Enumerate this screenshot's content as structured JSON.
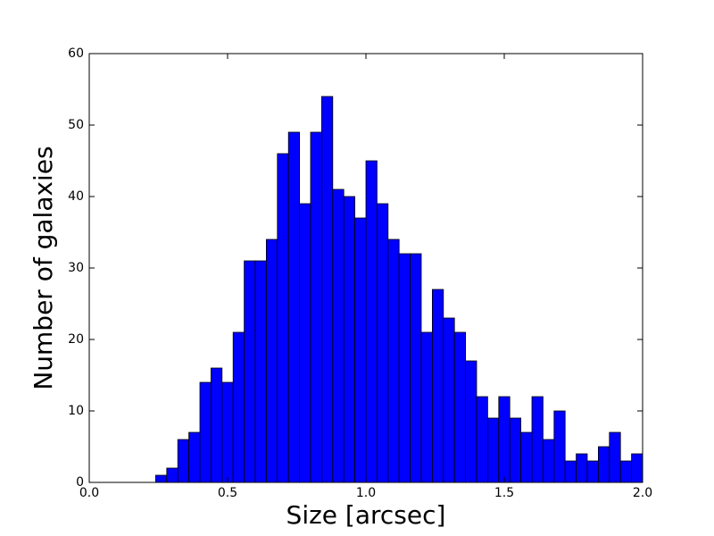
{
  "chart_data": {
    "type": "histogram",
    "xlabel": "Size [arcsec]",
    "ylabel": "Number of galaxies",
    "bins": [
      0.24,
      0.28,
      0.32,
      0.36,
      0.4,
      0.44,
      0.48,
      0.52,
      0.56,
      0.6,
      0.64,
      0.68,
      0.72,
      0.76,
      0.8,
      0.84,
      0.88,
      0.92,
      0.96,
      1.0,
      1.04,
      1.08,
      1.12,
      1.16,
      1.2,
      1.24,
      1.28,
      1.32,
      1.36,
      1.4,
      1.44,
      1.48,
      1.52,
      1.56,
      1.6,
      1.64,
      1.68,
      1.72,
      1.76,
      1.8,
      1.84,
      1.88,
      1.92,
      1.96,
      2.0
    ],
    "values": [
      1,
      2,
      6,
      7,
      14,
      16,
      14,
      21,
      31,
      31,
      34,
      46,
      49,
      39,
      49,
      54,
      41,
      40,
      37,
      45,
      39,
      34,
      32,
      32,
      21,
      27,
      23,
      21,
      17,
      12,
      9,
      12,
      9,
      7,
      12,
      6,
      10,
      3,
      4,
      3,
      5,
      7,
      3,
      4
    ],
    "color": "#0000ff",
    "xlim": [
      0,
      2
    ],
    "ylim": [
      0,
      60
    ],
    "xticks": [
      {
        "value": 0,
        "label": "0.0"
      },
      0.5,
      {
        "value": 1,
        "label": "1.0"
      },
      1.5,
      {
        "value": 2,
        "label": "2.0"
      }
    ],
    "yticks": [
      0,
      10,
      20,
      30,
      40,
      50,
      60
    ]
  }
}
